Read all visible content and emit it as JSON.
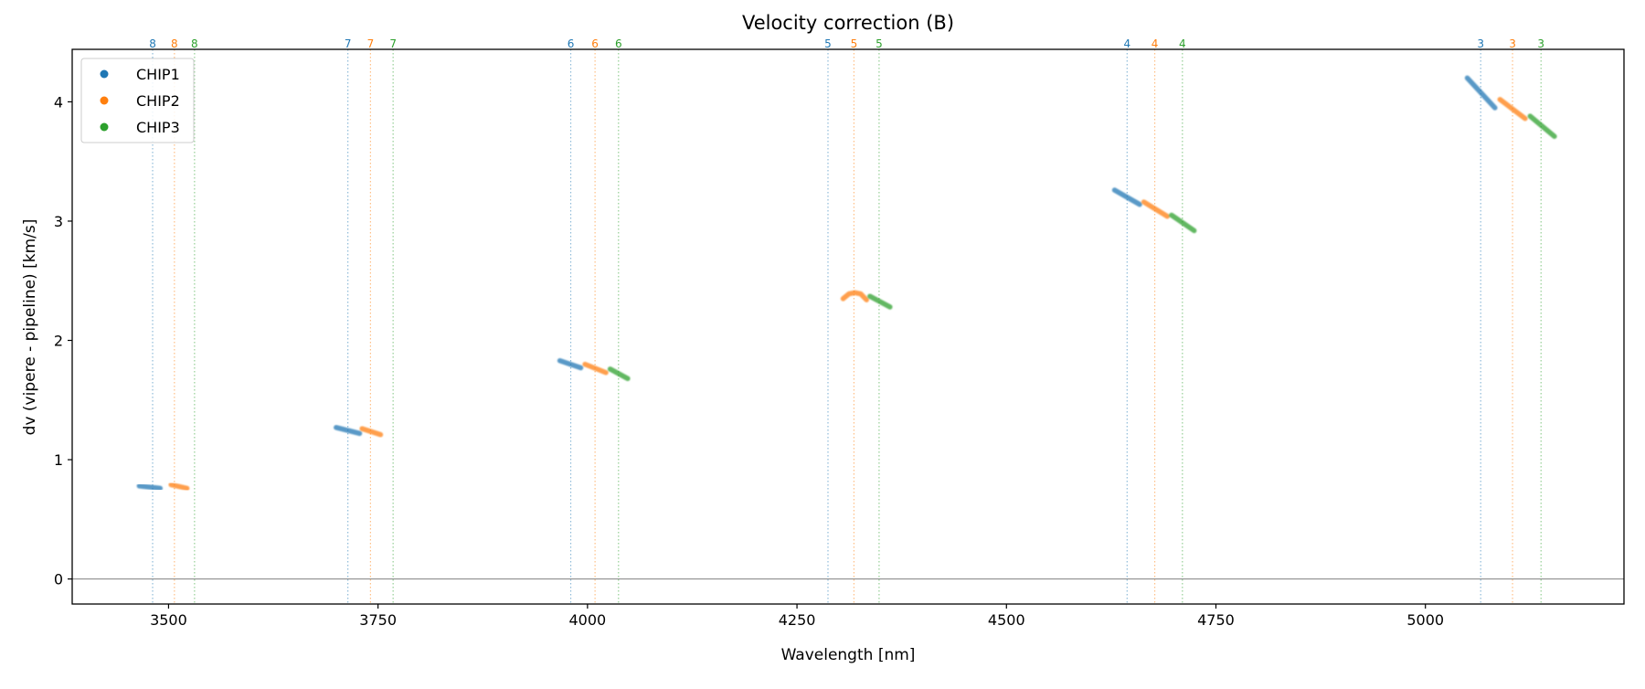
{
  "chart_data": {
    "type": "line",
    "title": "Velocity correction (B)",
    "xlabel": "Wavelength [nm]",
    "ylabel": "dv (vipere - pipeline) [km/s]",
    "xlim": [
      3385,
      5237
    ],
    "ylim": [
      -0.21,
      4.44
    ],
    "xticks": [
      3500,
      3750,
      4000,
      4250,
      4500,
      4750,
      5000
    ],
    "yticks": [
      0,
      1,
      2,
      3,
      4
    ],
    "grid": false,
    "zero_line": true,
    "legend": {
      "placement": "top-left",
      "entries": [
        "CHIP1",
        "CHIP2",
        "CHIP3"
      ]
    },
    "colors": {
      "CHIP1": "#1f77b4",
      "CHIP2": "#ff7f0e",
      "CHIP3": "#2ca02c"
    },
    "order_markers": [
      {
        "order": "8",
        "x": {
          "CHIP1": 3481,
          "CHIP2": 3507,
          "CHIP3": 3531
        }
      },
      {
        "order": "7",
        "x": {
          "CHIP1": 3714,
          "CHIP2": 3741,
          "CHIP3": 3768
        }
      },
      {
        "order": "6",
        "x": {
          "CHIP1": 3980,
          "CHIP2": 4009,
          "CHIP3": 4037
        }
      },
      {
        "order": "5",
        "x": {
          "CHIP1": 4287,
          "CHIP2": 4318,
          "CHIP3": 4348
        }
      },
      {
        "order": "4",
        "x": {
          "CHIP1": 4644,
          "CHIP2": 4677,
          "CHIP3": 4710
        }
      },
      {
        "order": "3",
        "x": {
          "CHIP1": 5066,
          "CHIP2": 5104,
          "CHIP3": 5138
        }
      }
    ],
    "series": [
      {
        "name": "CHIP1",
        "segments": [
          {
            "order": "8",
            "x": [
              3465,
              3490
            ],
            "y": [
              0.78,
              0.76
            ]
          },
          {
            "order": "7",
            "x": [
              3700,
              3728
            ],
            "y": [
              1.27,
              1.22
            ]
          },
          {
            "order": "6",
            "x": [
              3967,
              3992
            ],
            "y": [
              1.83,
              1.77
            ]
          },
          {
            "order": "4",
            "x": [
              4629,
              4659
            ],
            "y": [
              3.26,
              3.14
            ]
          },
          {
            "order": "3",
            "x": [
              5050,
              5083
            ],
            "y": [
              4.2,
              3.95
            ]
          }
        ]
      },
      {
        "name": "CHIP2",
        "segments": [
          {
            "order": "8",
            "x": [
              3503,
              3522
            ],
            "y": [
              0.79,
              0.76
            ]
          },
          {
            "order": "7",
            "x": [
              3731,
              3753
            ],
            "y": [
              1.26,
              1.21
            ]
          },
          {
            "order": "6",
            "x": [
              3997,
              4022
            ],
            "y": [
              1.8,
              1.73
            ]
          },
          {
            "order": "5",
            "x": [
              4305,
              4312,
              4319,
              4326,
              4333
            ],
            "y": [
              2.35,
              2.39,
              2.4,
              2.39,
              2.34
            ]
          },
          {
            "order": "4",
            "x": [
              4664,
              4692
            ],
            "y": [
              3.16,
              3.04
            ]
          },
          {
            "order": "3",
            "x": [
              5089,
              5119
            ],
            "y": [
              4.02,
              3.86
            ]
          }
        ]
      },
      {
        "name": "CHIP3",
        "segments": [
          {
            "order": "6",
            "x": [
              4027,
              4048
            ],
            "y": [
              1.76,
              1.68
            ]
          },
          {
            "order": "5",
            "x": [
              4337,
              4361
            ],
            "y": [
              2.37,
              2.28
            ]
          },
          {
            "order": "4",
            "x": [
              4697,
              4724
            ],
            "y": [
              3.05,
              2.92
            ]
          },
          {
            "order": "3",
            "x": [
              5125,
              5154
            ],
            "y": [
              3.88,
              3.71
            ]
          }
        ]
      }
    ]
  }
}
